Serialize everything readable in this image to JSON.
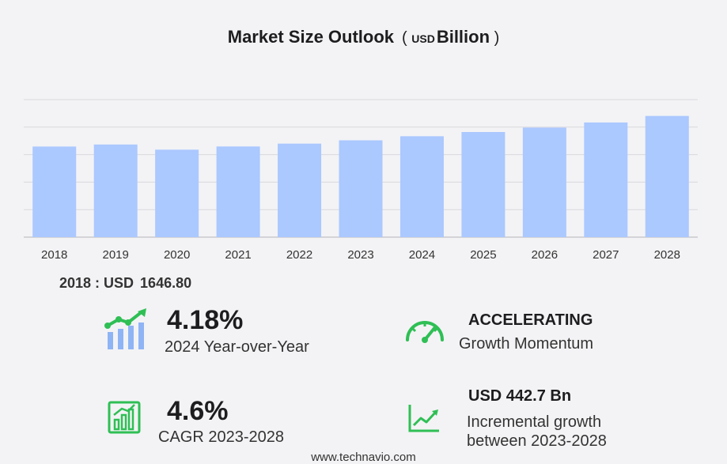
{
  "chart_data": {
    "type": "bar",
    "title": "Market Size Outlook",
    "unit_prefix": "( ",
    "unit_small": "USD",
    "unit_big": "Billion",
    "unit_suffix": " )",
    "categories": [
      "2018",
      "2019",
      "2020",
      "2021",
      "2022",
      "2023",
      "2024",
      "2025",
      "2026",
      "2027",
      "2028"
    ],
    "values": [
      1646.8,
      1684,
      1590,
      1648,
      1700,
      1760,
      1834,
      1911,
      1991,
      2084,
      2203
    ],
    "ylim": [
      0,
      2500
    ],
    "grid": true,
    "bar_color": "#abc8ff",
    "grid_color": "#d9d9de"
  },
  "base_year": {
    "label": "2018 : USD",
    "value": "1646.80"
  },
  "stats": {
    "yoy": {
      "value": "4.18%",
      "label": "2024 Year-over-Year",
      "icon": "bar-growth-icon"
    },
    "momentum": {
      "head": "ACCELERATING",
      "label": "Growth Momentum",
      "icon": "speedometer-icon"
    },
    "cagr": {
      "value": "4.6%",
      "label": "CAGR 2023-2028",
      "icon": "bar-chart-icon"
    },
    "incremental": {
      "head": "USD 442.7 Bn",
      "label_line1": "Incremental growth",
      "label_line2": "between 2023-2028",
      "icon": "trend-line-icon"
    }
  },
  "colors": {
    "accent_green": "#2fbf55",
    "accent_blue": "#8fb4f5"
  },
  "footer": "www.technavio.com"
}
